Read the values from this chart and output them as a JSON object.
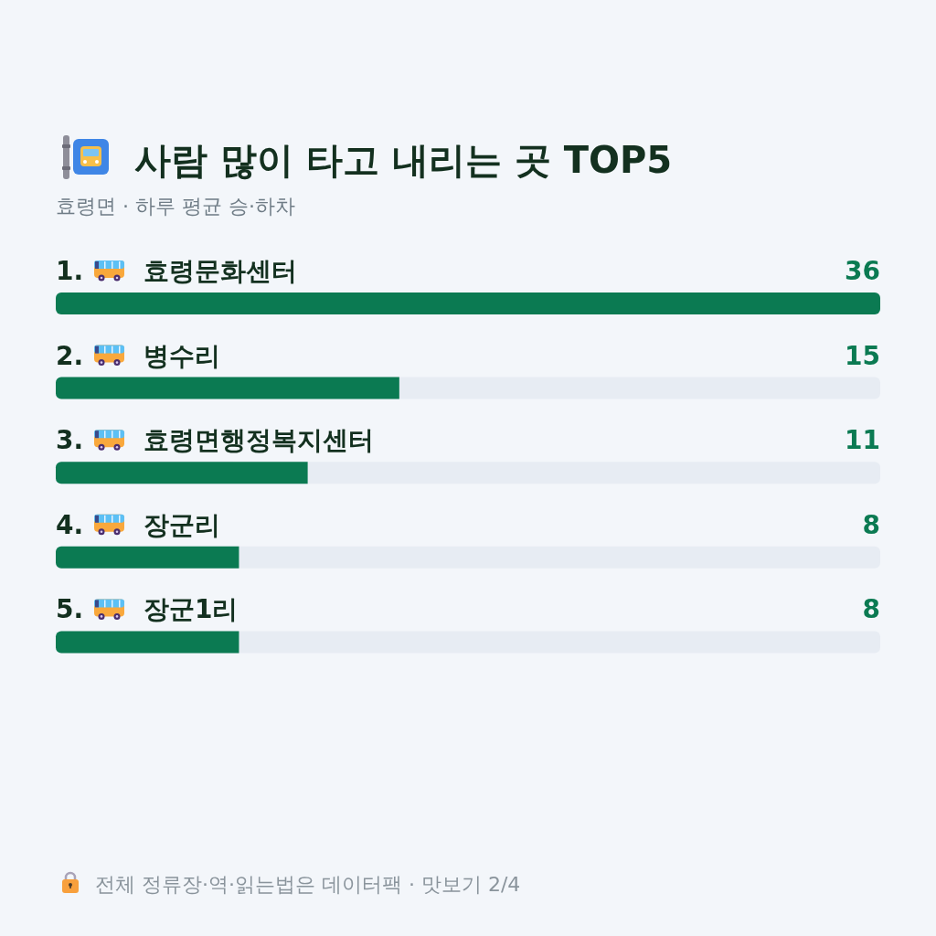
{
  "chart_data": {
    "type": "bar",
    "orientation": "horizontal",
    "title": "사람 많이 타고 내리는 곳 TOP5",
    "subtitle": "효령면 · 하루 평균 승·하차",
    "categories": [
      "1. 효령문화센터",
      "2. 병수리",
      "3. 효령면행정복지센터",
      "4. 장군리",
      "5. 장군1리"
    ],
    "values": [
      36,
      15,
      11,
      8,
      8
    ],
    "color": "#0b7a52",
    "data_labels": true,
    "annotations": [
      "전체 정류장·역·읽는법은 데이터팩 · 맛보기 2/4"
    ]
  }
}
